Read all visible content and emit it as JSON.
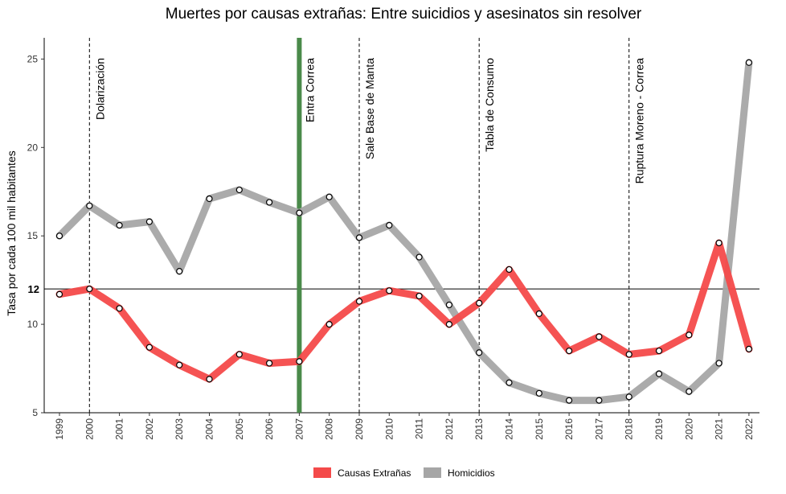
{
  "chart_data": {
    "type": "line",
    "title": "Muertes por causas extrañas:  Entre suicidios y asesinatos sin resolver",
    "ylabel": "Tasa por cada 100 mil habitantes",
    "xlabel": "",
    "x": [
      "1999",
      "2000",
      "2001",
      "2002",
      "2003",
      "2004",
      "2005",
      "2006",
      "2007",
      "2008",
      "2009",
      "2010",
      "2011",
      "2012",
      "2013",
      "2014",
      "2015",
      "2016",
      "2017",
      "2018",
      "2019",
      "2020",
      "2021",
      "2022"
    ],
    "ylim": [
      5,
      26.2
    ],
    "yticks": [
      5,
      10,
      15,
      20,
      25
    ],
    "reference_line": {
      "value": 12,
      "label": "12"
    },
    "series": [
      {
        "name": "Causas Extrañas",
        "color": "#f44a4a",
        "values": [
          11.7,
          12.0,
          10.9,
          8.7,
          7.7,
          6.9,
          8.3,
          7.8,
          7.9,
          10.0,
          11.3,
          11.9,
          11.6,
          10.0,
          11.2,
          13.1,
          10.6,
          8.5,
          9.3,
          8.3,
          8.5,
          9.4,
          14.6,
          8.6
        ]
      },
      {
        "name": "Homicidios",
        "color": "#a6a6a6",
        "values": [
          15.0,
          16.7,
          15.6,
          15.8,
          13.0,
          17.1,
          17.6,
          16.9,
          16.3,
          17.2,
          14.9,
          15.6,
          13.8,
          11.1,
          8.4,
          6.7,
          6.1,
          5.7,
          5.7,
          5.9,
          7.2,
          6.2,
          7.8,
          24.8
        ]
      }
    ],
    "events": [
      {
        "x": 2000,
        "label": "Dolarización"
      },
      {
        "x": 2007,
        "label": "Entra Correa",
        "highlight": true,
        "color": "#4a8a4a"
      },
      {
        "x": 2009,
        "label": "Sale Base de Manta"
      },
      {
        "x": 2013,
        "label": "Tabla de Consumo"
      },
      {
        "x": 2018,
        "label": "Ruptura Moreno - Correa"
      }
    ],
    "legend": {
      "position": "bottom"
    },
    "grid": false
  }
}
